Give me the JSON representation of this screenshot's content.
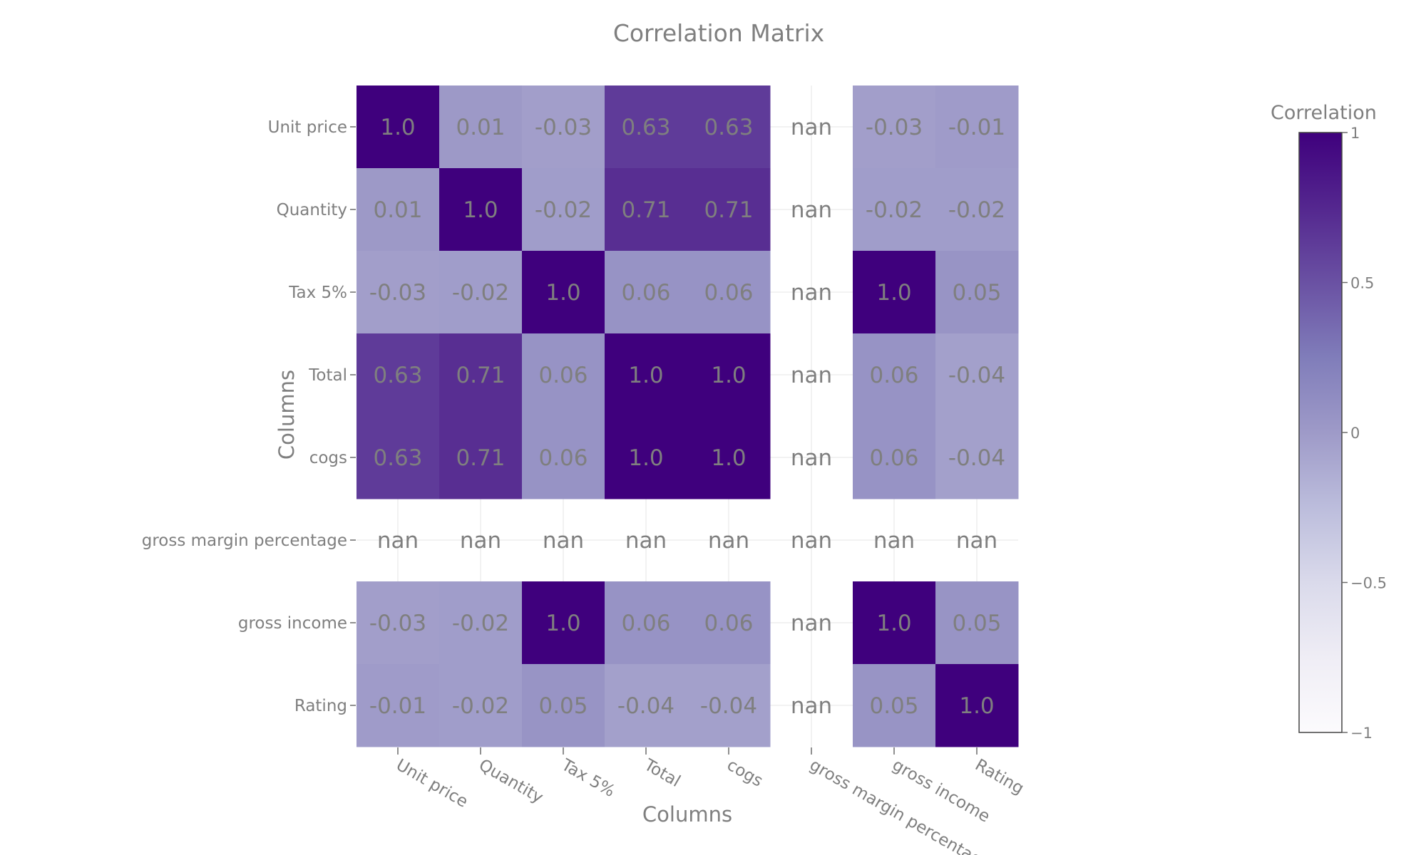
{
  "chart_data": {
    "type": "heatmap",
    "title": "Correlation Matrix",
    "xlabel": "Columns",
    "ylabel": "Columns",
    "x": [
      "Unit price",
      "Quantity",
      "Tax 5%",
      "Total",
      "cogs",
      "gross margin percentage",
      "gross income",
      "Rating"
    ],
    "y": [
      "Unit price",
      "Quantity",
      "Tax 5%",
      "Total",
      "cogs",
      "gross margin percentage",
      "gross income",
      "Rating"
    ],
    "z": [
      [
        1.0,
        0.01,
        -0.03,
        0.63,
        0.63,
        null,
        -0.03,
        -0.01
      ],
      [
        0.01,
        1.0,
        -0.02,
        0.71,
        0.71,
        null,
        -0.02,
        -0.02
      ],
      [
        -0.03,
        -0.02,
        1.0,
        0.06,
        0.06,
        null,
        1.0,
        0.05
      ],
      [
        0.63,
        0.71,
        0.06,
        1.0,
        1.0,
        null,
        0.06,
        -0.04
      ],
      [
        0.63,
        0.71,
        0.06,
        1.0,
        1.0,
        null,
        0.06,
        -0.04
      ],
      [
        null,
        null,
        null,
        null,
        null,
        null,
        null,
        null
      ],
      [
        -0.03,
        -0.02,
        1.0,
        0.06,
        0.06,
        null,
        1.0,
        0.05
      ],
      [
        -0.01,
        -0.02,
        0.05,
        -0.04,
        -0.04,
        null,
        0.05,
        1.0
      ]
    ],
    "text": [
      [
        "1.0",
        "0.01",
        "-0.03",
        "0.63",
        "0.63",
        "nan",
        "-0.03",
        "-0.01"
      ],
      [
        "0.01",
        "1.0",
        "-0.02",
        "0.71",
        "0.71",
        "nan",
        "-0.02",
        "-0.02"
      ],
      [
        "-0.03",
        "-0.02",
        "1.0",
        "0.06",
        "0.06",
        "nan",
        "1.0",
        "0.05"
      ],
      [
        "0.63",
        "0.71",
        "0.06",
        "1.0",
        "1.0",
        "nan",
        "0.06",
        "-0.04"
      ],
      [
        "0.63",
        "0.71",
        "0.06",
        "1.0",
        "1.0",
        "nan",
        "0.06",
        "-0.04"
      ],
      [
        "nan",
        "nan",
        "nan",
        "nan",
        "nan",
        "nan",
        "nan",
        "nan"
      ],
      [
        "-0.03",
        "-0.02",
        "1.0",
        "0.06",
        "0.06",
        "nan",
        "1.0",
        "0.05"
      ],
      [
        "-0.01",
        "-0.02",
        "0.05",
        "-0.04",
        "-0.04",
        "nan",
        "0.05",
        "1.0"
      ]
    ],
    "zrange": [
      -1,
      1
    ],
    "colorbar": {
      "title": "Correlation",
      "ticks": [
        1,
        0.5,
        0,
        -0.5,
        -1
      ],
      "tick_labels": [
        "1",
        "0.5",
        "0",
        "−0.5",
        "−1"
      ]
    },
    "colorscale": [
      "#fcfbfd",
      "#efedf5",
      "#dadaeb",
      "#bcbddc",
      "#9e9ac8",
      "#807dba",
      "#6a51a3",
      "#54278f",
      "#3f007d"
    ],
    "grid": true,
    "legend": "right"
  }
}
